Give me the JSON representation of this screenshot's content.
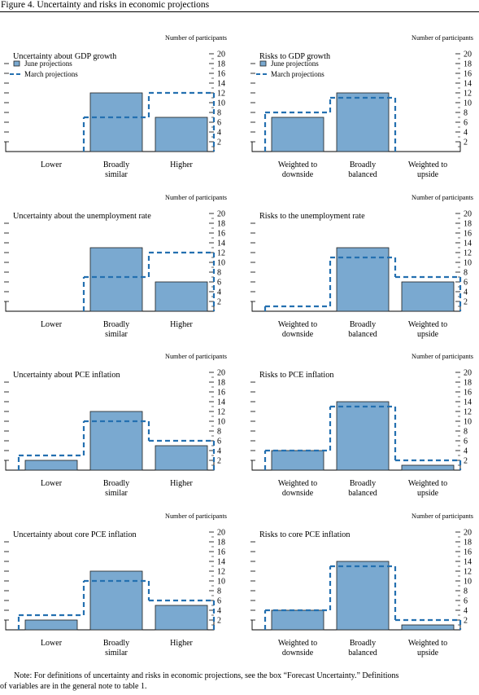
{
  "figure_title": "Figure 4. Uncertainty and risks in economic projections",
  "note": {
    "line1": "Note: For definitions of uncertainty and risks in economic projections, see the box “Forecast Uncertainty.” Definitions",
    "line2": "of variables are in the general note to table 1."
  },
  "colors": {
    "bar_fill": "#7aa9d0",
    "bar_stroke": "#1e1e1e",
    "dash": "#2470b0"
  },
  "chart_data": [
    {
      "type": "bar",
      "title": "Uncertainty about GDP growth",
      "ylabel": "Number of participants",
      "ylim": [
        0,
        20
      ],
      "yticks": [
        "2",
        "4",
        "6",
        "8",
        "10",
        "12",
        "14",
        "16",
        "18",
        "20"
      ],
      "categories": [
        [
          "Lower"
        ],
        [
          "Broadly",
          "similar"
        ],
        [
          "Higher"
        ]
      ],
      "series": [
        {
          "name": "June projections",
          "style": "bar",
          "values": [
            0,
            12,
            7
          ]
        },
        {
          "name": "March projections",
          "style": "dashed-outline",
          "values": [
            0,
            7,
            12
          ]
        }
      ],
      "legend": true
    },
    {
      "type": "bar",
      "title": "Risks to GDP growth",
      "ylabel": "Number of participants",
      "ylim": [
        0,
        20
      ],
      "yticks": [
        "2",
        "4",
        "6",
        "8",
        "10",
        "12",
        "14",
        "16",
        "18",
        "20"
      ],
      "categories": [
        [
          "Weighted to",
          "downside"
        ],
        [
          "Broadly",
          "balanced"
        ],
        [
          "Weighted to",
          "upside"
        ]
      ],
      "series": [
        {
          "name": "June projections",
          "style": "bar",
          "values": [
            7,
            12,
            0
          ]
        },
        {
          "name": "March projections",
          "style": "dashed-outline",
          "values": [
            8,
            11,
            0
          ]
        }
      ],
      "legend": true
    },
    {
      "type": "bar",
      "title": "Uncertainty about the unemployment rate",
      "ylabel": "Number of participants",
      "ylim": [
        0,
        20
      ],
      "yticks": [
        "2",
        "4",
        "6",
        "8",
        "10",
        "12",
        "14",
        "16",
        "18",
        "20"
      ],
      "categories": [
        [
          "Lower"
        ],
        [
          "Broadly",
          "similar"
        ],
        [
          "Higher"
        ]
      ],
      "series": [
        {
          "style": "bar",
          "values": [
            0,
            13,
            6
          ]
        },
        {
          "style": "dashed-outline",
          "values": [
            0,
            7,
            12
          ]
        }
      ],
      "legend": false
    },
    {
      "type": "bar",
      "title": "Risks to the unemployment rate",
      "ylabel": "Number of participants",
      "ylim": [
        0,
        20
      ],
      "yticks": [
        "2",
        "4",
        "6",
        "8",
        "10",
        "12",
        "14",
        "16",
        "18",
        "20"
      ],
      "categories": [
        [
          "Weighted to",
          "downside"
        ],
        [
          "Broadly",
          "balanced"
        ],
        [
          "Weighted to",
          "upside"
        ]
      ],
      "series": [
        {
          "style": "bar",
          "values": [
            0,
            13,
            6
          ]
        },
        {
          "style": "dashed-outline",
          "values": [
            1,
            11,
            7
          ]
        }
      ],
      "legend": false
    },
    {
      "type": "bar",
      "title": "Uncertainty about PCE inflation",
      "ylabel": "Number of participants",
      "ylim": [
        0,
        20
      ],
      "yticks": [
        "2",
        "4",
        "6",
        "8",
        "10",
        "12",
        "14",
        "16",
        "18",
        "20"
      ],
      "categories": [
        [
          "Lower"
        ],
        [
          "Broadly",
          "similar"
        ],
        [
          "Higher"
        ]
      ],
      "series": [
        {
          "style": "bar",
          "values": [
            2,
            12,
            5
          ]
        },
        {
          "style": "dashed-outline",
          "values": [
            3,
            10,
            6
          ]
        }
      ],
      "legend": false
    },
    {
      "type": "bar",
      "title": "Risks to PCE inflation",
      "ylabel": "Number of participants",
      "ylim": [
        0,
        20
      ],
      "yticks": [
        "2",
        "4",
        "6",
        "8",
        "10",
        "12",
        "14",
        "16",
        "18",
        "20"
      ],
      "categories": [
        [
          "Weighted to",
          "downside"
        ],
        [
          "Broadly",
          "balanced"
        ],
        [
          "Weighted to",
          "upside"
        ]
      ],
      "series": [
        {
          "style": "bar",
          "values": [
            4,
            14,
            1
          ]
        },
        {
          "style": "dashed-outline",
          "values": [
            4,
            13,
            2
          ]
        }
      ],
      "legend": false
    },
    {
      "type": "bar",
      "title": "Uncertainty about core PCE inflation",
      "ylabel": "Number of participants",
      "ylim": [
        0,
        20
      ],
      "yticks": [
        "2",
        "4",
        "6",
        "8",
        "10",
        "12",
        "14",
        "16",
        "18",
        "20"
      ],
      "categories": [
        [
          "Lower"
        ],
        [
          "Broadly",
          "similar"
        ],
        [
          "Higher"
        ]
      ],
      "series": [
        {
          "style": "bar",
          "values": [
            2,
            12,
            5
          ]
        },
        {
          "style": "dashed-outline",
          "values": [
            3,
            10,
            6
          ]
        }
      ],
      "legend": false
    },
    {
      "type": "bar",
      "title": "Risks to core PCE inflation",
      "ylabel": "Number of participants",
      "ylim": [
        0,
        20
      ],
      "yticks": [
        "2",
        "4",
        "6",
        "8",
        "10",
        "12",
        "14",
        "16",
        "18",
        "20"
      ],
      "categories": [
        [
          "Weighted to",
          "downside"
        ],
        [
          "Broadly",
          "balanced"
        ],
        [
          "Weighted to",
          "upside"
        ]
      ],
      "series": [
        {
          "style": "bar",
          "values": [
            4,
            14,
            1
          ]
        },
        {
          "style": "dashed-outline",
          "values": [
            4,
            13,
            2
          ]
        }
      ],
      "legend": false
    }
  ]
}
